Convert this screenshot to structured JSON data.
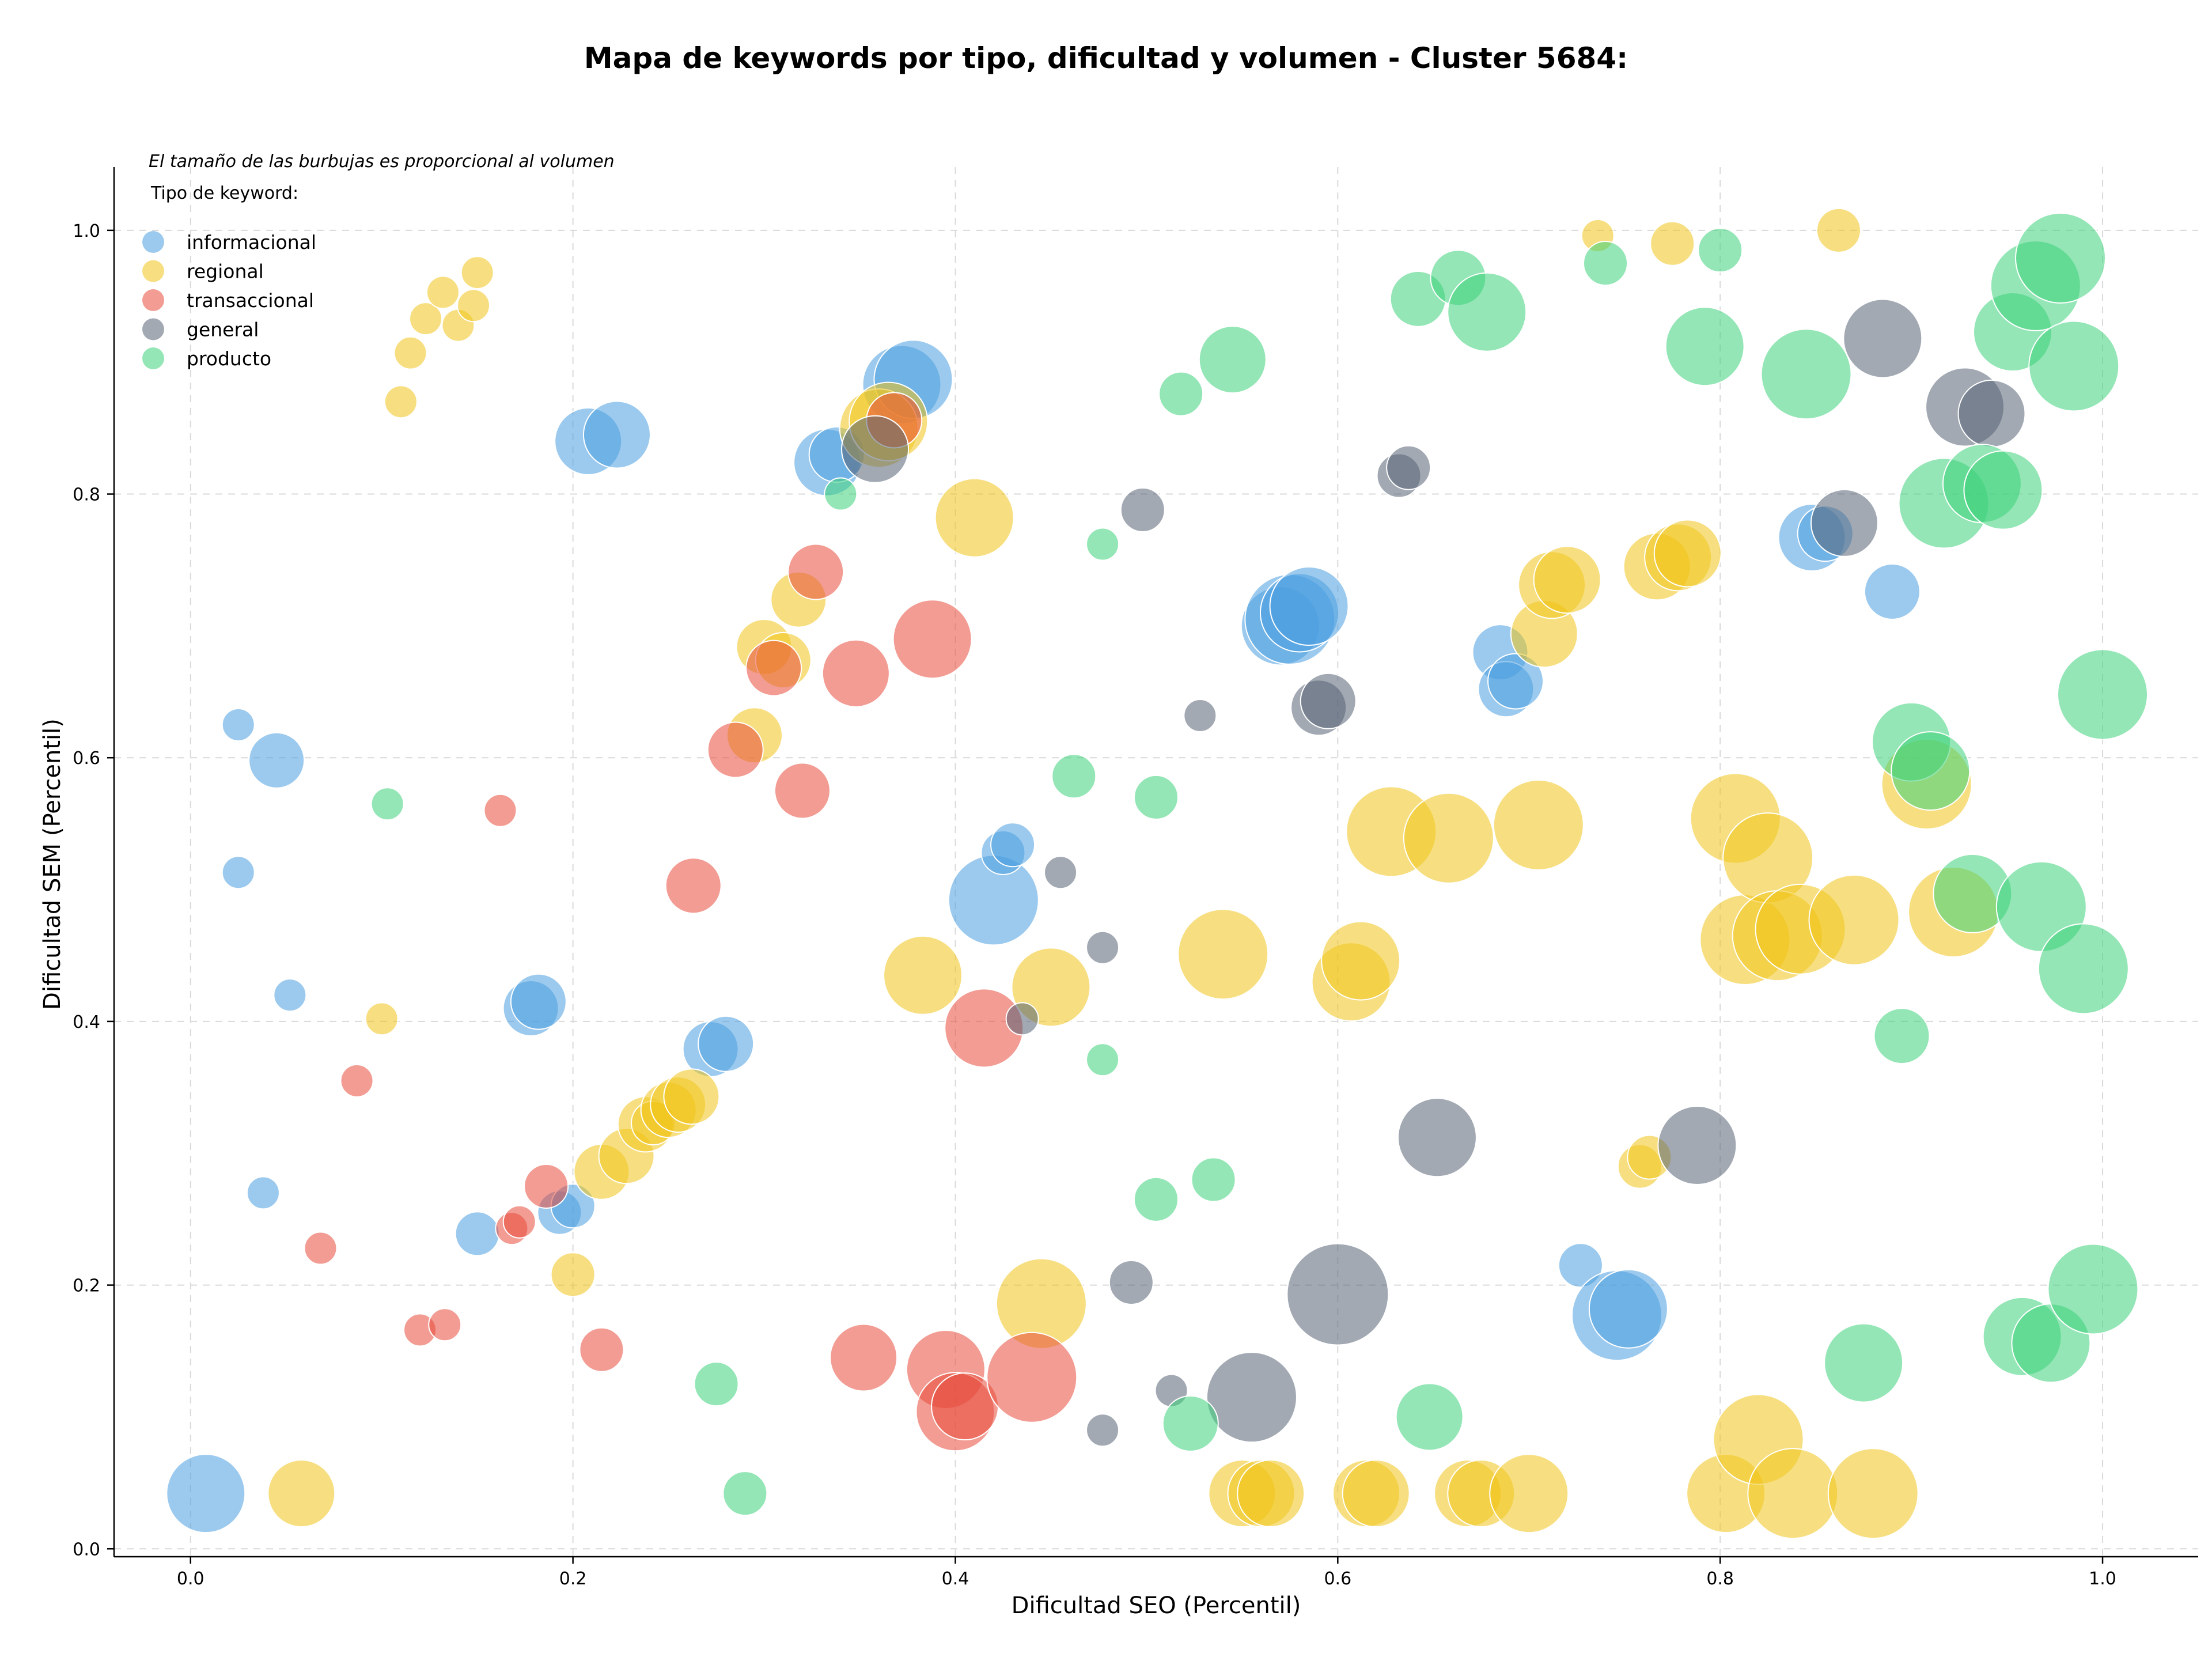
{
  "chart_data": {
    "type": "scatter",
    "title": "Mapa de keywords por tipo, dificultad y volumen - Cluster 5684:",
    "xlabel": "Dificultad SEO (Percentil)",
    "ylabel": "Dificultad SEM (Percentil)",
    "xlim": [
      -0.04,
      1.05
    ],
    "ylim": [
      -0.006,
      1.048
    ],
    "xticks": [
      "0.0",
      "0.2",
      "0.4",
      "0.6",
      "0.8",
      "1.0"
    ],
    "yticks": [
      "0.0",
      "0.2",
      "0.4",
      "0.6",
      "0.8",
      "1.0"
    ],
    "grid": true,
    "note": "El tamaño de las burbujas es proporcional al volumen",
    "legend": {
      "title": "Tipo de keyword:",
      "position": "top-left"
    },
    "series": [
      {
        "name": "informacional",
        "color": "#4a9fe0",
        "points": [
          [
            0.025,
            0.625,
            1
          ],
          [
            0.045,
            0.598,
            3
          ],
          [
            0.025,
            0.513,
            1
          ],
          [
            0.052,
            0.42,
            1
          ],
          [
            0.038,
            0.27,
            1
          ],
          [
            0.008,
            0.042,
            5
          ],
          [
            0.15,
            0.239,
            2
          ],
          [
            0.178,
            0.41,
            3
          ],
          [
            0.182,
            0.415,
            3
          ],
          [
            0.193,
            0.255,
            2
          ],
          [
            0.2,
            0.26,
            2
          ],
          [
            0.208,
            0.84,
            4
          ],
          [
            0.223,
            0.845,
            4
          ],
          [
            0.272,
            0.379,
            3
          ],
          [
            0.28,
            0.383,
            3
          ],
          [
            0.333,
            0.824,
            4
          ],
          [
            0.338,
            0.83,
            3
          ],
          [
            0.372,
            0.883,
            5
          ],
          [
            0.378,
            0.887,
            5
          ],
          [
            0.42,
            0.492,
            6
          ],
          [
            0.425,
            0.528,
            2
          ],
          [
            0.43,
            0.534,
            2
          ],
          [
            0.57,
            0.7,
            5
          ],
          [
            0.575,
            0.705,
            6
          ],
          [
            0.58,
            0.71,
            5
          ],
          [
            0.585,
            0.715,
            5
          ],
          [
            0.685,
            0.68,
            3
          ],
          [
            0.688,
            0.652,
            3
          ],
          [
            0.693,
            0.658,
            3
          ],
          [
            0.727,
            0.215,
            2
          ],
          [
            0.746,
            0.177,
            6
          ],
          [
            0.752,
            0.182,
            5
          ],
          [
            0.848,
            0.767,
            4
          ],
          [
            0.855,
            0.77,
            3
          ],
          [
            0.89,
            0.726,
            3
          ]
        ]
      },
      {
        "name": "regional",
        "color": "#f0c419",
        "points": [
          [
            0.11,
            0.87,
            1
          ],
          [
            0.115,
            0.907,
            1
          ],
          [
            0.123,
            0.933,
            1
          ],
          [
            0.132,
            0.953,
            1
          ],
          [
            0.14,
            0.928,
            1
          ],
          [
            0.148,
            0.943,
            1
          ],
          [
            0.15,
            0.968,
            1
          ],
          [
            0.1,
            0.402,
            1
          ],
          [
            0.058,
            0.042,
            4
          ],
          [
            0.2,
            0.208,
            2
          ],
          [
            0.215,
            0.286,
            3
          ],
          [
            0.228,
            0.298,
            3
          ],
          [
            0.238,
            0.322,
            3
          ],
          [
            0.242,
            0.323,
            2
          ],
          [
            0.25,
            0.333,
            3
          ],
          [
            0.255,
            0.337,
            3
          ],
          [
            0.262,
            0.343,
            3
          ],
          [
            0.295,
            0.617,
            3
          ],
          [
            0.3,
            0.684,
            3
          ],
          [
            0.31,
            0.674,
            3
          ],
          [
            0.318,
            0.72,
            3
          ],
          [
            0.36,
            0.85,
            5
          ],
          [
            0.365,
            0.855,
            5
          ],
          [
            0.383,
            0.435,
            5
          ],
          [
            0.41,
            0.782,
            5
          ],
          [
            0.45,
            0.426,
            5
          ],
          [
            0.445,
            0.186,
            6
          ],
          [
            0.54,
            0.451,
            6
          ],
          [
            0.55,
            0.042,
            4
          ],
          [
            0.56,
            0.042,
            4
          ],
          [
            0.565,
            0.042,
            4
          ],
          [
            0.607,
            0.43,
            5
          ],
          [
            0.612,
            0.446,
            5
          ],
          [
            0.615,
            0.042,
            4
          ],
          [
            0.62,
            0.042,
            4
          ],
          [
            0.628,
            0.544,
            6
          ],
          [
            0.658,
            0.539,
            6
          ],
          [
            0.668,
            0.042,
            4
          ],
          [
            0.675,
            0.042,
            4
          ],
          [
            0.7,
            0.042,
            5
          ],
          [
            0.705,
            0.549,
            6
          ],
          [
            0.708,
            0.694,
            4
          ],
          [
            0.712,
            0.731,
            4
          ],
          [
            0.72,
            0.735,
            4
          ],
          [
            0.736,
            0.996,
            1
          ],
          [
            0.767,
            0.745,
            4
          ],
          [
            0.775,
            0.99,
            2
          ],
          [
            0.778,
            0.752,
            4
          ],
          [
            0.783,
            0.755,
            4
          ],
          [
            0.758,
            0.29,
            2
          ],
          [
            0.763,
            0.297,
            2
          ],
          [
            0.803,
            0.042,
            5
          ],
          [
            0.808,
            0.554,
            6
          ],
          [
            0.813,
            0.462,
            6
          ],
          [
            0.825,
            0.524,
            6
          ],
          [
            0.82,
            0.083,
            6
          ],
          [
            0.83,
            0.465,
            6
          ],
          [
            0.838,
            0.042,
            6
          ],
          [
            0.842,
            0.47,
            6
          ],
          [
            0.862,
            1.0,
            2
          ],
          [
            0.87,
            0.477,
            6
          ],
          [
            0.88,
            0.042,
            6
          ],
          [
            0.908,
            0.58,
            6
          ],
          [
            0.922,
            0.483,
            6
          ]
        ]
      },
      {
        "name": "transaccional",
        "color": "#e84a3b",
        "points": [
          [
            0.087,
            0.355,
            1
          ],
          [
            0.068,
            0.228,
            1
          ],
          [
            0.12,
            0.166,
            1
          ],
          [
            0.133,
            0.17,
            1
          ],
          [
            0.162,
            0.56,
            1
          ],
          [
            0.168,
            0.243,
            1
          ],
          [
            0.172,
            0.248,
            1
          ],
          [
            0.186,
            0.275,
            2
          ],
          [
            0.215,
            0.151,
            2
          ],
          [
            0.263,
            0.503,
            3
          ],
          [
            0.285,
            0.606,
            3
          ],
          [
            0.305,
            0.668,
            3
          ],
          [
            0.32,
            0.575,
            3
          ],
          [
            0.327,
            0.741,
            3
          ],
          [
            0.348,
            0.664,
            4
          ],
          [
            0.352,
            0.145,
            4
          ],
          [
            0.368,
            0.856,
            3
          ],
          [
            0.388,
            0.69,
            5
          ],
          [
            0.395,
            0.136,
            5
          ],
          [
            0.4,
            0.104,
            5
          ],
          [
            0.405,
            0.108,
            4
          ],
          [
            0.415,
            0.395,
            5
          ],
          [
            0.44,
            0.13,
            6
          ]
        ]
      },
      {
        "name": "general",
        "color": "#556375",
        "points": [
          [
            0.358,
            0.834,
            4
          ],
          [
            0.435,
            0.402,
            1
          ],
          [
            0.455,
            0.513,
            1
          ],
          [
            0.477,
            0.456,
            1
          ],
          [
            0.477,
            0.09,
            1
          ],
          [
            0.492,
            0.202,
            2
          ],
          [
            0.498,
            0.788,
            2
          ],
          [
            0.513,
            0.12,
            1
          ],
          [
            0.528,
            0.632,
            1
          ],
          [
            0.555,
            0.115,
            6
          ],
          [
            0.59,
            0.638,
            3
          ],
          [
            0.595,
            0.643,
            3
          ],
          [
            0.6,
            0.193,
            7
          ],
          [
            0.632,
            0.814,
            2
          ],
          [
            0.637,
            0.82,
            2
          ],
          [
            0.652,
            0.312,
            5
          ],
          [
            0.788,
            0.306,
            5
          ],
          [
            0.865,
            0.778,
            4
          ],
          [
            0.885,
            0.918,
            5
          ],
          [
            0.928,
            0.866,
            5
          ],
          [
            0.942,
            0.861,
            4
          ]
        ]
      },
      {
        "name": "producto",
        "color": "#3dd17a",
        "points": [
          [
            0.103,
            0.565,
            1
          ],
          [
            0.275,
            0.125,
            2
          ],
          [
            0.29,
            0.042,
            2
          ],
          [
            0.34,
            0.8,
            1
          ],
          [
            0.462,
            0.586,
            2
          ],
          [
            0.477,
            0.762,
            1
          ],
          [
            0.477,
            0.371,
            1
          ],
          [
            0.505,
            0.265,
            2
          ],
          [
            0.505,
            0.57,
            2
          ],
          [
            0.518,
            0.876,
            2
          ],
          [
            0.523,
            0.095,
            3
          ],
          [
            0.535,
            0.28,
            2
          ],
          [
            0.545,
            0.902,
            4
          ],
          [
            0.642,
            0.948,
            3
          ],
          [
            0.648,
            0.1,
            4
          ],
          [
            0.663,
            0.964,
            3
          ],
          [
            0.678,
            0.938,
            5
          ],
          [
            0.74,
            0.975,
            2
          ],
          [
            0.792,
            0.912,
            5
          ],
          [
            0.8,
            0.985,
            2
          ],
          [
            0.845,
            0.891,
            6
          ],
          [
            0.875,
            0.141,
            5
          ],
          [
            0.895,
            0.389,
            3
          ],
          [
            0.9,
            0.612,
            5
          ],
          [
            0.91,
            0.59,
            5
          ],
          [
            0.917,
            0.793,
            6
          ],
          [
            0.932,
            0.497,
            5
          ],
          [
            0.937,
            0.808,
            5
          ],
          [
            0.948,
            0.803,
            5
          ],
          [
            0.953,
            0.923,
            5
          ],
          [
            0.958,
            0.161,
            5
          ],
          [
            0.965,
            0.958,
            6
          ],
          [
            0.968,
            0.487,
            6
          ],
          [
            0.973,
            0.156,
            5
          ],
          [
            0.978,
            0.979,
            6
          ],
          [
            0.985,
            0.897,
            6
          ],
          [
            0.99,
            0.44,
            6
          ],
          [
            0.995,
            0.197,
            6
          ],
          [
            1.0,
            0.648,
            6
          ]
        ]
      }
    ]
  }
}
